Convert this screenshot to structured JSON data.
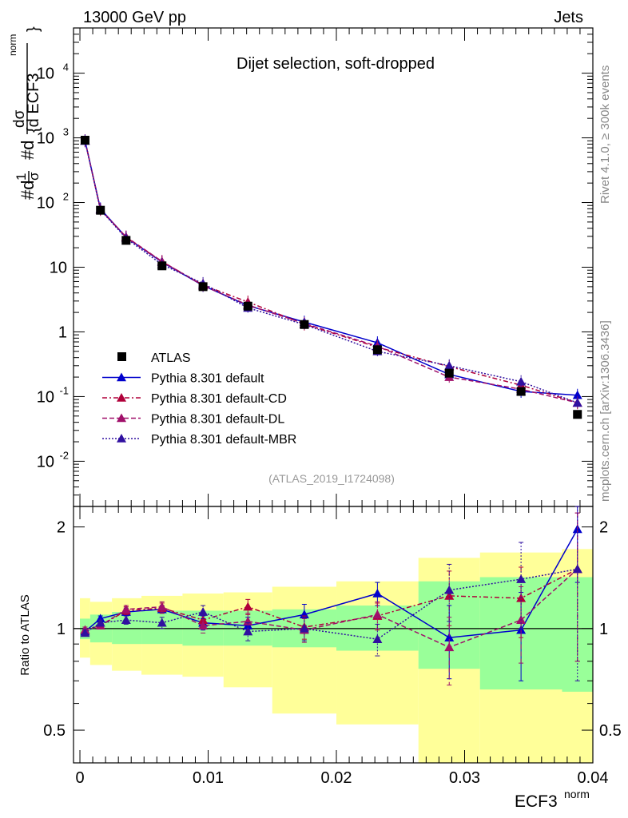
{
  "header": {
    "left": "13000 GeV pp",
    "right": "Jets"
  },
  "side_labels": {
    "rivet": "Rivet 4.1.0, ≥ 300k events",
    "mcplots": "mcplots.cern.ch [arXiv:1306.3436]"
  },
  "chart_data": [
    {
      "type": "line",
      "title": "Dijet selection, soft-dropped",
      "analysis_tag": "(ATLAS_2019_I1724098)",
      "ylabel": "1/σ dσ / d ECF3^norm",
      "yscale": "log",
      "ylim": [
        0.002,
        50000
      ],
      "xlim": [
        -0.0005,
        0.04
      ],
      "ytick_labels": [
        "10^-2",
        "10^-1",
        "1",
        "10",
        "10^2",
        "10^3",
        "10^4"
      ],
      "x": [
        0.0004,
        0.0016,
        0.0036,
        0.0064,
        0.0096,
        0.0131,
        0.0175,
        0.0232,
        0.0288,
        0.0344,
        0.0388
      ],
      "series": [
        {
          "name": "ATLAS",
          "color": "#000000",
          "style": "points",
          "marker": "square",
          "values": [
            920,
            76,
            26,
            10.5,
            5.0,
            2.5,
            1.3,
            0.53,
            0.23,
            0.12,
            0.053
          ]
        },
        {
          "name": "Pythia 8.301 default",
          "color": "#0000cc",
          "style": "solid",
          "marker": "triangle",
          "values": [
            900,
            80,
            29,
            12.0,
            5.2,
            2.55,
            1.42,
            0.68,
            0.22,
            0.12,
            0.105
          ]
        },
        {
          "name": "Pythia 8.301 default-CD",
          "color": "#b0003a",
          "style": "dashdot",
          "marker": "triangle",
          "values": [
            905,
            78,
            29,
            12.2,
            5.3,
            2.9,
            1.32,
            0.58,
            0.29,
            0.15,
            0.08
          ]
        },
        {
          "name": "Pythia 8.301 default-DL",
          "color": "#a0106a",
          "style": "dashed",
          "marker": "triangle",
          "values": [
            905,
            78,
            29.5,
            12.3,
            5.2,
            2.6,
            1.35,
            0.6,
            0.2,
            0.13,
            0.08
          ]
        },
        {
          "name": "Pythia 8.301 default-MBR",
          "color": "#3010a0",
          "style": "dotted",
          "marker": "triangle",
          "values": [
            895,
            77,
            28,
            11.0,
            5.6,
            2.35,
            1.3,
            0.5,
            0.3,
            0.17,
            0.08
          ]
        }
      ]
    },
    {
      "type": "line",
      "ylabel": "Ratio to ATLAS",
      "xlabel": "ECF3^norm",
      "yscale": "log",
      "ylim": [
        0.4,
        2.3
      ],
      "xlim": [
        -0.0005,
        0.04
      ],
      "ytick_labels": [
        "0.5",
        "1",
        "2"
      ],
      "xtick_labels": [
        "0",
        "0.01",
        "0.02",
        "0.03",
        "0.04"
      ],
      "x": [
        0.0004,
        0.0016,
        0.0036,
        0.0064,
        0.0096,
        0.0131,
        0.0175,
        0.0232,
        0.0288,
        0.0344,
        0.0388
      ],
      "bins": [
        0,
        0.0008,
        0.0025,
        0.0048,
        0.008,
        0.0112,
        0.015,
        0.02,
        0.0264,
        0.0312,
        0.0376,
        0.04
      ],
      "band_inner": {
        "color": "#99ff99",
        "low": [
          0.93,
          0.91,
          0.9,
          0.9,
          0.89,
          0.89,
          0.88,
          0.86,
          0.76,
          0.66,
          0.65
        ],
        "high": [
          1.07,
          1.1,
          1.12,
          1.13,
          1.13,
          1.13,
          1.14,
          1.17,
          1.38,
          1.42,
          1.42
        ]
      },
      "band_outer": {
        "color": "#ffff99",
        "low": [
          0.82,
          0.78,
          0.75,
          0.73,
          0.72,
          0.67,
          0.56,
          0.52,
          0.4,
          0.4,
          0.4
        ],
        "high": [
          1.23,
          1.2,
          1.23,
          1.25,
          1.27,
          1.28,
          1.33,
          1.38,
          1.62,
          1.68,
          1.72
        ]
      },
      "series": [
        {
          "name": "Pythia 8.301 default",
          "color": "#0000cc",
          "style": "solid",
          "values": [
            0.98,
            1.07,
            1.12,
            1.14,
            1.04,
            1.02,
            1.1,
            1.27,
            0.94,
            0.99,
            1.97
          ],
          "err": [
            0.02,
            0.02,
            0.03,
            0.03,
            0.05,
            0.06,
            0.08,
            0.1,
            0.23,
            0.29,
            0.6
          ]
        },
        {
          "name": "Pythia 8.301 default-CD",
          "color": "#b0003a",
          "style": "dashdot",
          "values": [
            0.99,
            1.02,
            1.13,
            1.15,
            1.06,
            1.16,
            1.01,
            1.09,
            1.25,
            1.23,
            1.5
          ],
          "err": [
            0.02,
            0.02,
            0.03,
            0.04,
            0.05,
            0.06,
            0.08,
            0.1,
            0.23,
            0.29,
            0.7
          ]
        },
        {
          "name": "Pythia 8.301 default-DL",
          "color": "#a0106a",
          "style": "dashed",
          "values": [
            0.99,
            1.02,
            1.14,
            1.16,
            1.02,
            1.05,
            0.99,
            1.1,
            0.88,
            1.06,
            1.5
          ],
          "err": [
            0.02,
            0.02,
            0.03,
            0.04,
            0.05,
            0.06,
            0.08,
            0.1,
            0.2,
            0.27,
            0.7
          ]
        },
        {
          "name": "Pythia 8.301 default-MBR",
          "color": "#3010a0",
          "style": "dotted",
          "values": [
            0.97,
            1.04,
            1.06,
            1.04,
            1.12,
            0.98,
            1.0,
            0.93,
            1.3,
            1.4,
            1.5
          ],
          "err": [
            0.02,
            0.02,
            0.03,
            0.04,
            0.05,
            0.06,
            0.08,
            0.1,
            0.25,
            0.4,
            0.8
          ]
        }
      ]
    }
  ]
}
